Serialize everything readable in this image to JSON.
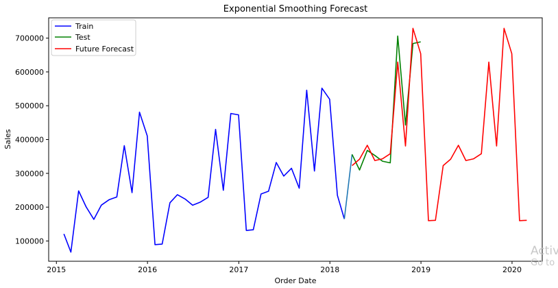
{
  "chart_data": {
    "type": "line",
    "title": "Exponential Smoothing Forecast",
    "xlabel": "Order Date",
    "ylabel": "Sales",
    "x_ticks": [
      "2015",
      "2016",
      "2017",
      "2018",
      "2019",
      "2020"
    ],
    "y_ticks": [
      "100000",
      "200000",
      "300000",
      "400000",
      "500000",
      "600000",
      "700000"
    ],
    "xlim": [
      "2014-12-01",
      "2020-05-01"
    ],
    "ylim": [
      40000,
      760000
    ],
    "grid": false,
    "legend_position": "top-left",
    "series": [
      {
        "name": "Train",
        "color": "#0000ff",
        "points": [
          [
            "2015-01-31",
            121000
          ],
          [
            "2015-02-28",
            67000
          ],
          [
            "2015-03-31",
            248000
          ],
          [
            "2015-04-30",
            201000
          ],
          [
            "2015-05-31",
            164000
          ],
          [
            "2015-06-30",
            206000
          ],
          [
            "2015-07-31",
            222000
          ],
          [
            "2015-08-31",
            230000
          ],
          [
            "2015-09-30",
            382000
          ],
          [
            "2015-10-31",
            243000
          ],
          [
            "2015-11-30",
            481000
          ],
          [
            "2015-12-31",
            411000
          ],
          [
            "2016-01-31",
            89000
          ],
          [
            "2016-02-29",
            91000
          ],
          [
            "2016-03-31",
            213000
          ],
          [
            "2016-04-30",
            237000
          ],
          [
            "2016-05-31",
            224000
          ],
          [
            "2016-06-30",
            206000
          ],
          [
            "2016-07-31",
            215000
          ],
          [
            "2016-08-31",
            229000
          ],
          [
            "2016-09-30",
            430000
          ],
          [
            "2016-10-31",
            250000
          ],
          [
            "2016-11-30",
            477000
          ],
          [
            "2016-12-31",
            473000
          ],
          [
            "2017-01-31",
            131000
          ],
          [
            "2017-02-28",
            133000
          ],
          [
            "2017-03-31",
            239000
          ],
          [
            "2017-04-30",
            247000
          ],
          [
            "2017-05-31",
            332000
          ],
          [
            "2017-06-30",
            292000
          ],
          [
            "2017-07-31",
            315000
          ],
          [
            "2017-08-31",
            256000
          ],
          [
            "2017-09-30",
            546000
          ],
          [
            "2017-10-31",
            307000
          ],
          [
            "2017-11-30",
            552000
          ],
          [
            "2017-12-31",
            519000
          ],
          [
            "2018-01-31",
            235000
          ],
          [
            "2018-02-28",
            165000
          ]
        ]
      },
      {
        "name": "",
        "color": "#1f77b4",
        "points": [
          [
            "2018-02-28",
            165000
          ],
          [
            "2018-03-31",
            356000
          ]
        ]
      },
      {
        "name": "Test",
        "color": "#008000",
        "points": [
          [
            "2018-03-31",
            356000
          ],
          [
            "2018-04-30",
            310000
          ],
          [
            "2018-05-31",
            368000
          ],
          [
            "2018-06-30",
            353000
          ],
          [
            "2018-07-31",
            336000
          ],
          [
            "2018-08-31",
            331000
          ],
          [
            "2018-09-30",
            706000
          ],
          [
            "2018-10-31",
            443000
          ],
          [
            "2018-11-30",
            684000
          ],
          [
            "2018-12-31",
            689000
          ]
        ]
      },
      {
        "name": "Future Forecast",
        "color": "#ff0000",
        "points": [
          [
            "2018-03-31",
            323000
          ],
          [
            "2018-04-30",
            342000
          ],
          [
            "2018-05-31",
            383000
          ],
          [
            "2018-06-30",
            338000
          ],
          [
            "2018-07-31",
            343000
          ],
          [
            "2018-08-31",
            358000
          ],
          [
            "2018-09-30",
            629000
          ],
          [
            "2018-10-31",
            381000
          ],
          [
            "2018-11-30",
            729000
          ],
          [
            "2018-12-31",
            654000
          ],
          [
            "2019-01-31",
            160000
          ],
          [
            "2019-02-28",
            161000
          ],
          [
            "2019-03-31",
            323000
          ],
          [
            "2019-04-30",
            342000
          ],
          [
            "2019-05-31",
            383000
          ],
          [
            "2019-06-30",
            338000
          ],
          [
            "2019-07-31",
            343000
          ],
          [
            "2019-08-31",
            358000
          ],
          [
            "2019-09-30",
            629000
          ],
          [
            "2019-10-31",
            381000
          ],
          [
            "2019-11-30",
            729000
          ],
          [
            "2019-12-31",
            654000
          ],
          [
            "2020-01-31",
            160000
          ],
          [
            "2020-02-29",
            161000
          ]
        ]
      }
    ]
  },
  "watermark": {
    "line1": "Activ",
    "line2": "Go to"
  }
}
